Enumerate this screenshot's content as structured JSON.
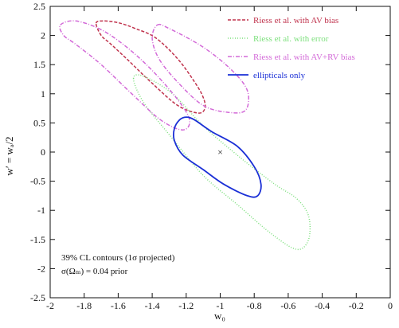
{
  "chart_data": {
    "type": "contour",
    "xlabel": "w₀",
    "ylabel": "w′ = wₐ/2",
    "xlim": [
      -2,
      0
    ],
    "ylim": [
      -2.5,
      2.5
    ],
    "x_ticks": [
      -2,
      -1.8,
      -1.6,
      -1.4,
      -1.2,
      -1,
      -0.8,
      -0.6,
      -0.4,
      -0.2,
      0
    ],
    "y_ticks": [
      -2.5,
      -2,
      -1.5,
      -1,
      -0.5,
      0,
      0.5,
      1,
      1.5,
      2,
      2.5
    ],
    "x_tick_labels": [
      "-2",
      "-1.8",
      "-1.6",
      "-1.4",
      "-1.2",
      "-1",
      "-0.8",
      "-0.6",
      "-0.4",
      "-0.2",
      "0"
    ],
    "y_tick_labels": [
      "-2.5",
      "-2",
      "-1.5",
      "-1",
      "-0.5",
      "0",
      "0.5",
      "1",
      "1.5",
      "2",
      "2.5"
    ],
    "grid": false,
    "legend_position": "top-right",
    "fiducial_marker": {
      "x": -1,
      "y": 0,
      "symbol": "×"
    },
    "annotation": {
      "line1": "39% CL contours (1σ projected)",
      "line2": "σ(Ωₘ) = 0.04 prior"
    },
    "series": [
      {
        "name": "Riess et al. with AV bias",
        "color": "#c0334d",
        "style": "dashed",
        "contour": [
          [
            -1.73,
            2.21
          ],
          [
            -1.69,
            2.25
          ],
          [
            -1.6,
            2.22
          ],
          [
            -1.5,
            2.12
          ],
          [
            -1.38,
            1.96
          ],
          [
            -1.25,
            1.6
          ],
          [
            -1.15,
            1.2
          ],
          [
            -1.1,
            0.94
          ],
          [
            -1.09,
            0.75
          ],
          [
            -1.13,
            0.67
          ],
          [
            -1.25,
            0.8
          ],
          [
            -1.4,
            1.18
          ],
          [
            -1.55,
            1.6
          ],
          [
            -1.65,
            1.87
          ],
          [
            -1.7,
            2.0
          ]
        ]
      },
      {
        "name": "Riess et al. with error",
        "color": "#7de07d",
        "style": "dotted",
        "contour": [
          [
            -1.51,
            1.26
          ],
          [
            -1.45,
            1.3
          ],
          [
            -1.28,
            1.0
          ],
          [
            -1.1,
            0.45
          ],
          [
            -0.88,
            -0.1
          ],
          [
            -0.68,
            -0.55
          ],
          [
            -0.55,
            -0.8
          ],
          [
            -0.48,
            -1.1
          ],
          [
            -0.48,
            -1.5
          ],
          [
            -0.55,
            -1.67
          ],
          [
            -0.7,
            -1.4
          ],
          [
            -0.9,
            -0.9
          ],
          [
            -1.1,
            -0.4
          ],
          [
            -1.3,
            0.3
          ],
          [
            -1.45,
            0.85
          ]
        ]
      },
      {
        "name": "Riess et al. with AV+RV bias",
        "color": "#d36ad8",
        "style": "dashdot",
        "contour": [
          [
            -1.94,
            2.18
          ],
          [
            -1.85,
            2.25
          ],
          [
            -1.7,
            2.1
          ],
          [
            -1.55,
            1.8
          ],
          [
            -1.4,
            1.4
          ],
          [
            -1.25,
            0.9
          ],
          [
            -1.18,
            0.55
          ],
          [
            -1.22,
            0.38
          ],
          [
            -1.35,
            0.55
          ],
          [
            -1.52,
            1.0
          ],
          [
            -1.7,
            1.5
          ],
          [
            -1.85,
            1.85
          ],
          [
            -1.92,
            2.0
          ]
        ]
      },
      {
        "name": "Riess et al. with AV+RV bias",
        "color": "#d36ad8",
        "style": "dashdot",
        "contour": [
          [
            -1.37,
            2.18
          ],
          [
            -1.3,
            2.12
          ],
          [
            -1.1,
            1.8
          ],
          [
            -0.93,
            1.4
          ],
          [
            -0.84,
            1.05
          ],
          [
            -0.85,
            0.72
          ],
          [
            -0.95,
            0.68
          ],
          [
            -1.1,
            0.8
          ],
          [
            -1.25,
            1.2
          ],
          [
            -1.36,
            1.6
          ],
          [
            -1.4,
            1.95
          ]
        ]
      },
      {
        "name": "ellipticals only",
        "color": "#1a2fd6",
        "style": "solid",
        "contour": [
          [
            -1.24,
            0.55
          ],
          [
            -1.2,
            0.6
          ],
          [
            -1.15,
            0.55
          ],
          [
            -1.05,
            0.35
          ],
          [
            -0.9,
            0.1
          ],
          [
            -0.8,
            -0.25
          ],
          [
            -0.76,
            -0.55
          ],
          [
            -0.78,
            -0.75
          ],
          [
            -0.84,
            -0.75
          ],
          [
            -0.98,
            -0.55
          ],
          [
            -1.1,
            -0.3
          ],
          [
            -1.22,
            -0.05
          ],
          [
            -1.27,
            0.2
          ],
          [
            -1.27,
            0.4
          ]
        ]
      }
    ],
    "legend": [
      {
        "label": "Riess et al. with AV bias",
        "color": "#c0334d",
        "style": "dashed"
      },
      {
        "label": "Riess et al. with error",
        "color": "#7de07d",
        "style": "dotted"
      },
      {
        "label": "Riess et al. with AV+RV bias",
        "color": "#d36ad8",
        "style": "dashdot"
      },
      {
        "label": "ellipticals only",
        "color": "#1a2fd6",
        "style": "solid"
      }
    ]
  }
}
